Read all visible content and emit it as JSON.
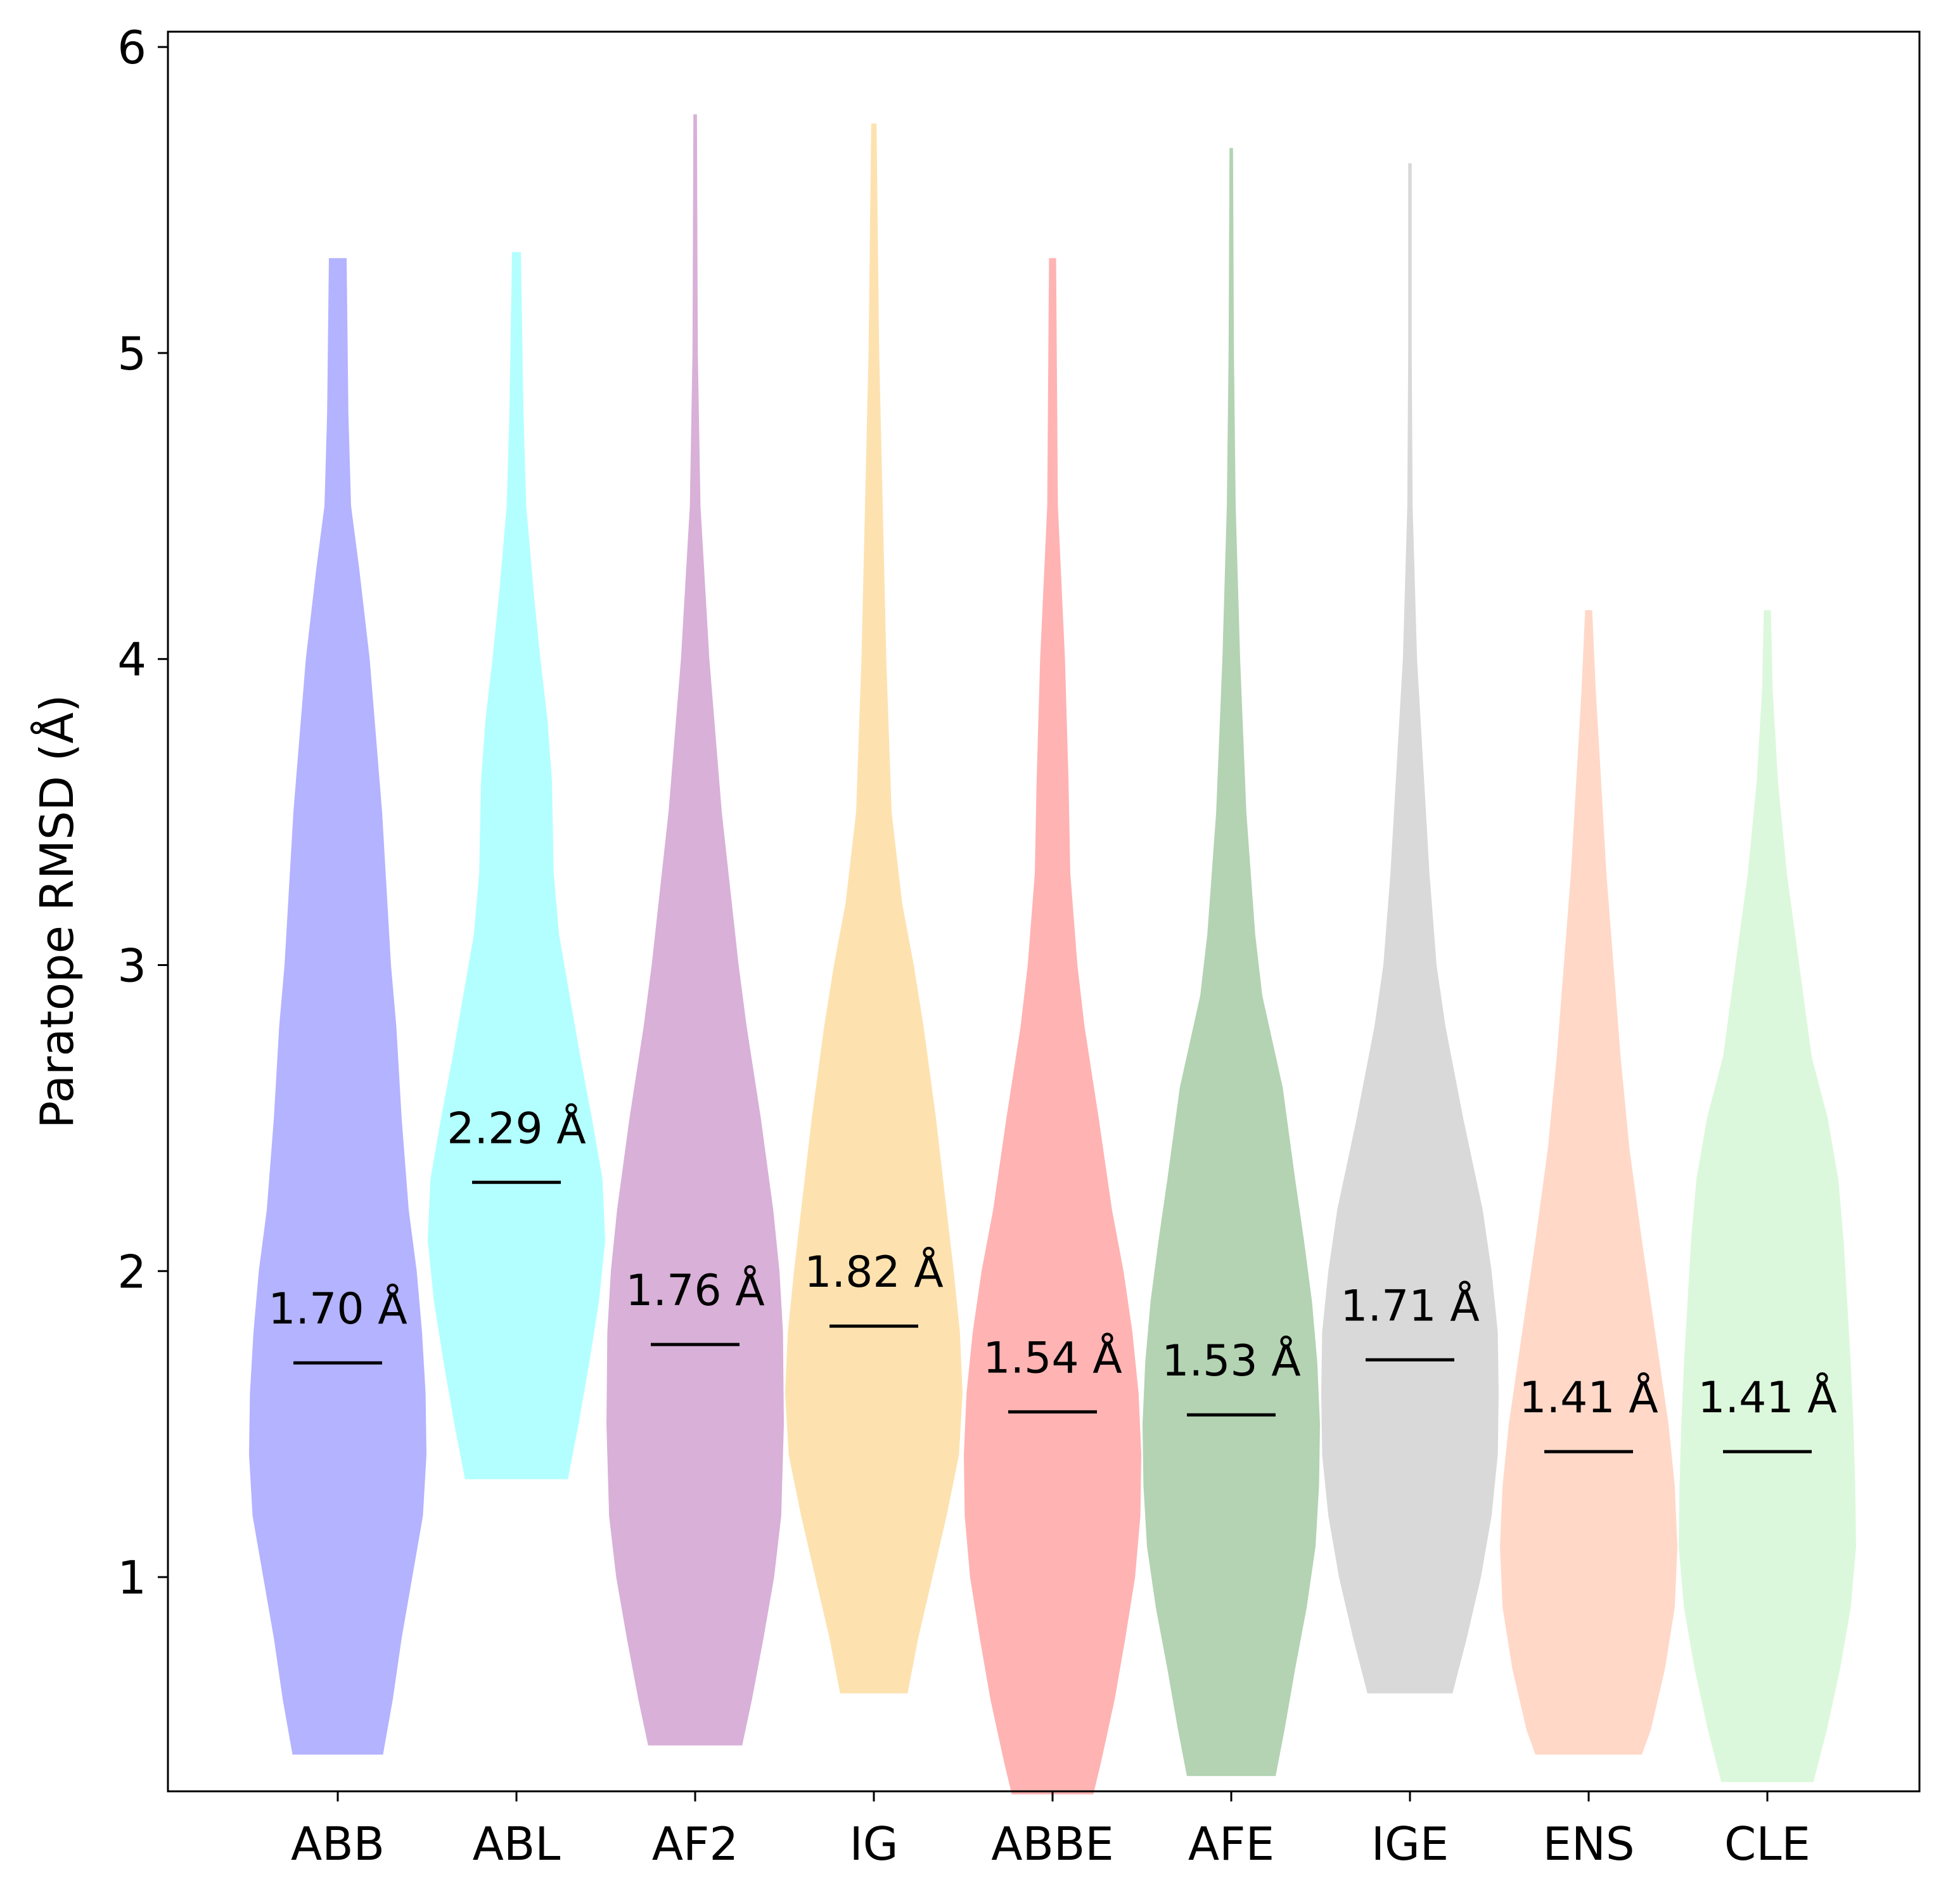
{
  "chart_data": {
    "type": "violin",
    "ylabel": "Paratope RMSD (Å)",
    "ylim": [
      0.3,
      6.05
    ],
    "yticks": [
      "1",
      "2",
      "3",
      "4",
      "5",
      "6"
    ],
    "grid": false,
    "categories": [
      "ABB",
      "ABL",
      "AF2",
      "IG",
      "ABBE",
      "AFE",
      "IGE",
      "ENS",
      "CLE"
    ],
    "series": [
      {
        "color": "#b3b3ff",
        "median": 1.7,
        "median_label": "1.70 Å",
        "min": 0.42,
        "max": 5.31,
        "profile": [
          [
            0.42,
            0.51
          ],
          [
            0.6,
            0.62
          ],
          [
            0.8,
            0.72
          ],
          [
            1.0,
            0.84
          ],
          [
            1.2,
            0.96
          ],
          [
            1.4,
            1.0
          ],
          [
            1.6,
            0.99
          ],
          [
            1.8,
            0.95
          ],
          [
            2.0,
            0.89
          ],
          [
            2.2,
            0.8
          ],
          [
            2.5,
            0.72
          ],
          [
            2.8,
            0.66
          ],
          [
            3.0,
            0.6
          ],
          [
            3.5,
            0.5
          ],
          [
            4.0,
            0.36
          ],
          [
            4.3,
            0.24
          ],
          [
            4.5,
            0.15
          ],
          [
            4.8,
            0.12
          ],
          [
            5.31,
            0.1
          ]
        ]
      },
      {
        "color": "#b3ffff",
        "median": 2.29,
        "median_label": "2.29 Å",
        "min": 1.32,
        "max": 5.33,
        "profile": [
          [
            1.32,
            0.58
          ],
          [
            1.5,
            0.7
          ],
          [
            1.7,
            0.82
          ],
          [
            1.9,
            0.93
          ],
          [
            2.1,
            1.0
          ],
          [
            2.3,
            0.97
          ],
          [
            2.5,
            0.85
          ],
          [
            2.7,
            0.72
          ],
          [
            2.9,
            0.6
          ],
          [
            3.1,
            0.48
          ],
          [
            3.3,
            0.42
          ],
          [
            3.6,
            0.4
          ],
          [
            3.8,
            0.35
          ],
          [
            4.0,
            0.27
          ],
          [
            4.2,
            0.2
          ],
          [
            4.5,
            0.11
          ],
          [
            4.8,
            0.08
          ],
          [
            5.33,
            0.05
          ]
        ]
      },
      {
        "color": "#d8b0d8",
        "median": 1.76,
        "median_label": "1.76 Å",
        "min": 0.45,
        "max": 5.78,
        "profile": [
          [
            0.45,
            0.53
          ],
          [
            0.6,
            0.64
          ],
          [
            0.8,
            0.77
          ],
          [
            1.0,
            0.89
          ],
          [
            1.2,
            0.97
          ],
          [
            1.5,
            1.0
          ],
          [
            1.8,
            0.99
          ],
          [
            2.0,
            0.95
          ],
          [
            2.2,
            0.88
          ],
          [
            2.5,
            0.74
          ],
          [
            2.8,
            0.58
          ],
          [
            3.0,
            0.49
          ],
          [
            3.5,
            0.3
          ],
          [
            4.0,
            0.16
          ],
          [
            4.5,
            0.06
          ],
          [
            5.0,
            0.03
          ],
          [
            5.78,
            0.02
          ]
        ]
      },
      {
        "color": "#fde2b0",
        "median": 1.82,
        "median_label": "1.82 Å",
        "min": 0.62,
        "max": 5.75,
        "profile": [
          [
            0.62,
            0.38
          ],
          [
            0.8,
            0.5
          ],
          [
            1.0,
            0.66
          ],
          [
            1.2,
            0.82
          ],
          [
            1.4,
            0.96
          ],
          [
            1.6,
            1.0
          ],
          [
            1.8,
            0.97
          ],
          [
            2.0,
            0.9
          ],
          [
            2.2,
            0.82
          ],
          [
            2.5,
            0.7
          ],
          [
            2.8,
            0.56
          ],
          [
            3.0,
            0.45
          ],
          [
            3.2,
            0.32
          ],
          [
            3.5,
            0.2
          ],
          [
            4.0,
            0.14
          ],
          [
            4.5,
            0.1
          ],
          [
            5.0,
            0.06
          ],
          [
            5.75,
            0.03
          ]
        ]
      },
      {
        "color": "#ffb3b3",
        "median": 1.54,
        "median_label": "1.54 Å",
        "min": 0.29,
        "max": 5.31,
        "profile": [
          [
            0.29,
            0.46
          ],
          [
            0.4,
            0.55
          ],
          [
            0.6,
            0.7
          ],
          [
            0.8,
            0.82
          ],
          [
            1.0,
            0.93
          ],
          [
            1.2,
            0.99
          ],
          [
            1.4,
            1.0
          ],
          [
            1.6,
            0.97
          ],
          [
            1.8,
            0.9
          ],
          [
            2.0,
            0.8
          ],
          [
            2.2,
            0.67
          ],
          [
            2.5,
            0.52
          ],
          [
            2.8,
            0.36
          ],
          [
            3.0,
            0.28
          ],
          [
            3.3,
            0.2
          ],
          [
            3.6,
            0.18
          ],
          [
            4.0,
            0.14
          ],
          [
            4.5,
            0.06
          ],
          [
            5.31,
            0.04
          ]
        ]
      },
      {
        "color": "#b3d3b3",
        "median": 1.53,
        "median_label": "1.53 Å",
        "min": 0.35,
        "max": 5.67,
        "profile": [
          [
            0.35,
            0.5
          ],
          [
            0.5,
            0.6
          ],
          [
            0.7,
            0.72
          ],
          [
            0.9,
            0.85
          ],
          [
            1.1,
            0.95
          ],
          [
            1.3,
            0.99
          ],
          [
            1.5,
            1.0
          ],
          [
            1.7,
            0.97
          ],
          [
            1.9,
            0.91
          ],
          [
            2.1,
            0.82
          ],
          [
            2.3,
            0.72
          ],
          [
            2.6,
            0.58
          ],
          [
            2.9,
            0.35
          ],
          [
            3.1,
            0.27
          ],
          [
            3.5,
            0.17
          ],
          [
            4.0,
            0.1
          ],
          [
            4.5,
            0.05
          ],
          [
            5.0,
            0.03
          ],
          [
            5.67,
            0.02
          ]
        ]
      },
      {
        "color": "#d9d9d9",
        "median": 1.71,
        "median_label": "1.71 Å",
        "min": 0.62,
        "max": 5.62,
        "profile": [
          [
            0.62,
            0.48
          ],
          [
            0.8,
            0.64
          ],
          [
            1.0,
            0.8
          ],
          [
            1.2,
            0.92
          ],
          [
            1.4,
            0.99
          ],
          [
            1.6,
            1.0
          ],
          [
            1.8,
            0.99
          ],
          [
            2.0,
            0.92
          ],
          [
            2.2,
            0.82
          ],
          [
            2.5,
            0.6
          ],
          [
            2.8,
            0.4
          ],
          [
            3.0,
            0.3
          ],
          [
            3.3,
            0.22
          ],
          [
            3.6,
            0.16
          ],
          [
            4.0,
            0.08
          ],
          [
            4.5,
            0.03
          ],
          [
            5.0,
            0.02
          ],
          [
            5.62,
            0.02
          ]
        ]
      },
      {
        "color": "#ffd8c8",
        "median": 1.41,
        "median_label": "1.41 Å",
        "min": 0.42,
        "max": 4.16,
        "profile": [
          [
            0.42,
            0.6
          ],
          [
            0.5,
            0.7
          ],
          [
            0.7,
            0.86
          ],
          [
            0.9,
            0.97
          ],
          [
            1.1,
            1.0
          ],
          [
            1.3,
            0.97
          ],
          [
            1.5,
            0.9
          ],
          [
            1.7,
            0.8
          ],
          [
            1.9,
            0.7
          ],
          [
            2.1,
            0.6
          ],
          [
            2.4,
            0.46
          ],
          [
            2.7,
            0.36
          ],
          [
            3.0,
            0.28
          ],
          [
            3.3,
            0.2
          ],
          [
            3.6,
            0.14
          ],
          [
            3.9,
            0.08
          ],
          [
            4.16,
            0.04
          ]
        ]
      },
      {
        "color": "#dcf8dc",
        "median": 1.41,
        "median_label": "1.41 Å",
        "min": 0.33,
        "max": 4.16,
        "profile": [
          [
            0.33,
            0.52
          ],
          [
            0.5,
            0.67
          ],
          [
            0.7,
            0.82
          ],
          [
            0.9,
            0.94
          ],
          [
            1.1,
            1.0
          ],
          [
            1.3,
            0.99
          ],
          [
            1.5,
            0.97
          ],
          [
            1.7,
            0.94
          ],
          [
            1.9,
            0.9
          ],
          [
            2.1,
            0.86
          ],
          [
            2.3,
            0.8
          ],
          [
            2.5,
            0.68
          ],
          [
            2.7,
            0.5
          ],
          [
            3.0,
            0.36
          ],
          [
            3.3,
            0.22
          ],
          [
            3.6,
            0.12
          ],
          [
            3.9,
            0.06
          ],
          [
            4.16,
            0.04
          ]
        ]
      }
    ]
  }
}
